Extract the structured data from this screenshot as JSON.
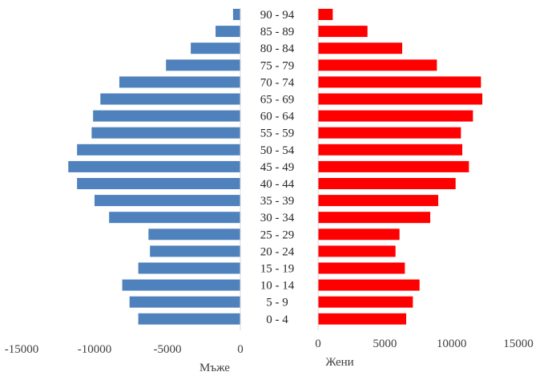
{
  "chart_data": {
    "type": "bar",
    "orientation": "horizontal",
    "categories": [
      "0 -  4",
      "5 -  9",
      "10 - 14",
      "15 - 19",
      "20 - 24",
      "25 - 29",
      "30 - 34",
      "35 - 39",
      "40 - 44",
      "45 - 49",
      "50 - 54",
      "55 - 59",
      "60 - 64",
      "65 - 69",
      "70 - 74",
      "75 - 79",
      "80 - 84",
      "85 - 89",
      "90 - 94"
    ],
    "series": [
      {
        "name": "Мъже",
        "color": "#4f81bd",
        "values": [
          7000,
          7600,
          8100,
          7000,
          6200,
          6300,
          9000,
          10000,
          11200,
          11800,
          11200,
          10200,
          10100,
          9600,
          8300,
          5100,
          3400,
          1700,
          500
        ]
      },
      {
        "name": "Жени",
        "color": "#ff0000",
        "values": [
          6600,
          7100,
          7600,
          6500,
          5800,
          6100,
          8400,
          9000,
          10300,
          11300,
          10800,
          10700,
          11600,
          12300,
          12200,
          8900,
          6300,
          3700,
          1100
        ]
      }
    ],
    "left_axis": {
      "ticks": [
        "-15000",
        "-10000",
        "-5000",
        "0"
      ],
      "tick_values": [
        -15000,
        -10000,
        -5000,
        0
      ],
      "title": "Мъже"
    },
    "right_axis": {
      "ticks": [
        "0",
        "5000",
        "10000",
        "15000"
      ],
      "tick_values": [
        0,
        5000,
        10000,
        15000
      ],
      "title": "Жени"
    },
    "grid": false
  }
}
